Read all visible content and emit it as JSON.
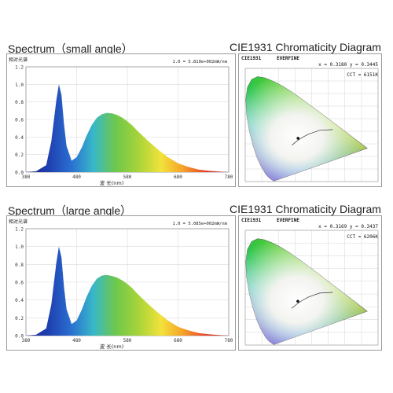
{
  "rows": [
    {
      "spectrum_heading": "Spectrum（small angle）",
      "cie_heading": "CIE1931 Chromaticity Diagram",
      "spectrum": {
        "ylabel": "相对光谱",
        "annotation": "1.0 = 5.810e+002mW/nm",
        "xlabel": "波 长(nm)"
      },
      "cie": {
        "title": "CIE1931",
        "brand": "EVERFINE",
        "xy_readout": "x = 0.3180 y = 0.3445",
        "cct_readout": "CCT = 6151K"
      }
    },
    {
      "spectrum_heading": "Spectrum（large angle）",
      "cie_heading": "CIE1931 Chromaticity Diagram",
      "spectrum": {
        "ylabel": "相对光谱",
        "annotation": "1.0 = 5.085e+002mW/nm",
        "xlabel": "波 长(nm)"
      },
      "cie": {
        "title": "CIE1931",
        "brand": "EVERFINE",
        "xy_readout": "x = 0.3169 y = 0.3437",
        "cct_readout": "CCT = 6206K"
      }
    }
  ],
  "chart_data": [
    {
      "type": "area",
      "title": "Spectrum（small angle）",
      "xlabel": "波 长(nm)",
      "ylabel": "相对光谱",
      "xlim": [
        380,
        780
      ],
      "ylim": [
        0,
        1.2
      ],
      "x_ticks": [
        380,
        480,
        580,
        680,
        780
      ],
      "x_tick_labels": [
        "380",
        "480",
        "580",
        "680",
        "780"
      ],
      "y_ticks": [
        0,
        0.2,
        0.4,
        0.6,
        0.8,
        1.0,
        1.2
      ],
      "y_tick_labels": [
        "0.0",
        "0.2",
        "0.4",
        "0.6",
        "0.8",
        "1.0",
        "1.2"
      ],
      "grid": true,
      "x": [
        380,
        400,
        420,
        430,
        440,
        445,
        450,
        455,
        460,
        470,
        480,
        490,
        500,
        510,
        520,
        530,
        540,
        550,
        560,
        570,
        580,
        590,
        600,
        620,
        640,
        660,
        680,
        700,
        720,
        740,
        760,
        780
      ],
      "y": [
        0.0,
        0.01,
        0.08,
        0.35,
        0.82,
        1.0,
        0.88,
        0.55,
        0.3,
        0.13,
        0.17,
        0.28,
        0.42,
        0.54,
        0.62,
        0.66,
        0.675,
        0.67,
        0.65,
        0.62,
        0.58,
        0.53,
        0.47,
        0.36,
        0.26,
        0.17,
        0.1,
        0.06,
        0.03,
        0.015,
        0.007,
        0.0
      ]
    },
    {
      "type": "area",
      "title": "Spectrum（large angle）",
      "xlabel": "波 长(nm)",
      "ylabel": "相对光谱",
      "xlim": [
        380,
        780
      ],
      "ylim": [
        0,
        1.2
      ],
      "x_ticks": [
        380,
        480,
        580,
        680,
        780
      ],
      "x_tick_labels": [
        "380",
        "480",
        "580",
        "680",
        "780"
      ],
      "y_ticks": [
        0,
        0.2,
        0.4,
        0.6,
        0.8,
        1.0,
        1.2
      ],
      "y_tick_labels": [
        "0.0",
        "0.2",
        "0.4",
        "0.6",
        "0.8",
        "1.0",
        "1.2"
      ],
      "grid": true,
      "x": [
        380,
        400,
        420,
        430,
        440,
        445,
        450,
        455,
        460,
        470,
        480,
        490,
        500,
        510,
        520,
        530,
        540,
        550,
        560,
        570,
        580,
        590,
        600,
        620,
        640,
        660,
        680,
        700,
        720,
        740,
        760,
        780
      ],
      "y": [
        0.0,
        0.01,
        0.08,
        0.35,
        0.82,
        1.0,
        0.88,
        0.55,
        0.3,
        0.13,
        0.17,
        0.29,
        0.44,
        0.56,
        0.64,
        0.675,
        0.68,
        0.67,
        0.65,
        0.62,
        0.58,
        0.53,
        0.47,
        0.36,
        0.26,
        0.17,
        0.1,
        0.06,
        0.03,
        0.015,
        0.007,
        0.0
      ]
    },
    {
      "type": "scatter",
      "title": "CIE1931",
      "xlim": [
        0,
        0.8
      ],
      "ylim": [
        0,
        0.9
      ],
      "grid": true,
      "series": [
        {
          "x": [
            0.318
          ],
          "y": [
            0.3445
          ]
        }
      ]
    },
    {
      "type": "scatter",
      "title": "CIE1931",
      "xlim": [
        0,
        0.8
      ],
      "ylim": [
        0,
        0.9
      ],
      "grid": true,
      "series": [
        {
          "x": [
            0.3169
          ],
          "y": [
            0.3437
          ]
        }
      ]
    }
  ],
  "spectrum_gradient": [
    "#1a2a8f",
    "#1f3fb0",
    "#2a6fd0",
    "#38b8c8",
    "#6fc84a",
    "#a8d43a",
    "#f2e23a",
    "#f5a02a",
    "#e8402a",
    "#c82020"
  ],
  "locus_colors": [
    "#8a2be2",
    "#2040d0",
    "#00b0e0",
    "#00c060",
    "#70d030",
    "#e0e020",
    "#ff9020",
    "#e02020"
  ]
}
